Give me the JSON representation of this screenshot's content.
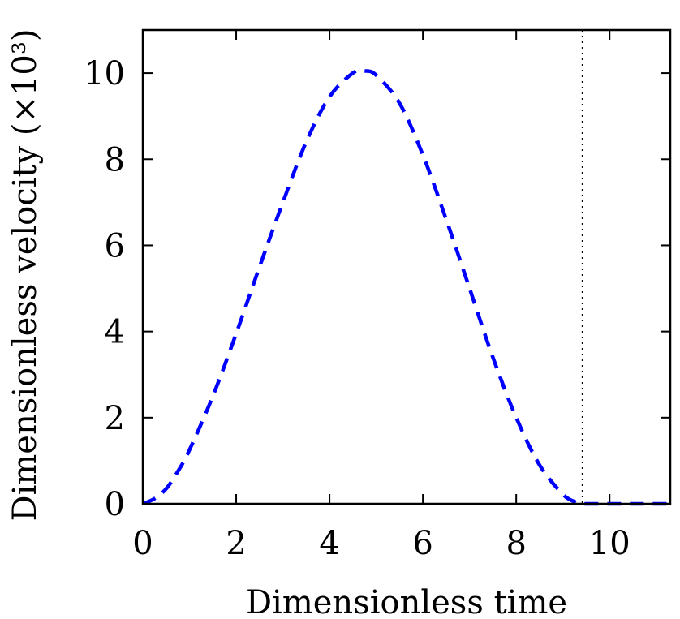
{
  "chart_data": {
    "type": "line",
    "title": "",
    "xlabel": "Dimensionless time",
    "ylabel": "Dimensionless velocity (×10³)",
    "xlim": [
      0,
      11.3
    ],
    "ylim": [
      0,
      11
    ],
    "x_ticks": [
      0,
      2,
      4,
      6,
      8,
      10
    ],
    "x_tick_labels": [
      "0",
      "2",
      "4",
      "6",
      "8",
      "10"
    ],
    "y_ticks": [
      0,
      2,
      4,
      6,
      8,
      10
    ],
    "y_tick_labels": [
      "0",
      "2",
      "4",
      "6",
      "8",
      "10"
    ],
    "grid": false,
    "legend": "none",
    "vertical_reference_line": {
      "x": 9.42,
      "style": "dotted",
      "color": "#000000"
    },
    "series": [
      {
        "color": "#0000ff",
        "style": "dashed",
        "x": [
          0,
          0.25,
          0.5,
          0.75,
          1,
          1.5,
          2,
          2.5,
          3,
          3.5,
          4,
          4.5,
          4.75,
          5,
          5.5,
          6,
          6.5,
          7,
          7.5,
          8,
          8.5,
          9,
          9.25,
          9.42,
          10,
          10.5,
          11.3
        ],
        "y": [
          0,
          0.12,
          0.35,
          0.75,
          1.25,
          2.5,
          3.95,
          5.5,
          7.0,
          8.4,
          9.45,
          10.0,
          10.05,
          9.95,
          9.3,
          8.1,
          6.6,
          5.0,
          3.4,
          2.0,
          0.9,
          0.22,
          0.05,
          0,
          0,
          0,
          0
        ]
      }
    ]
  }
}
